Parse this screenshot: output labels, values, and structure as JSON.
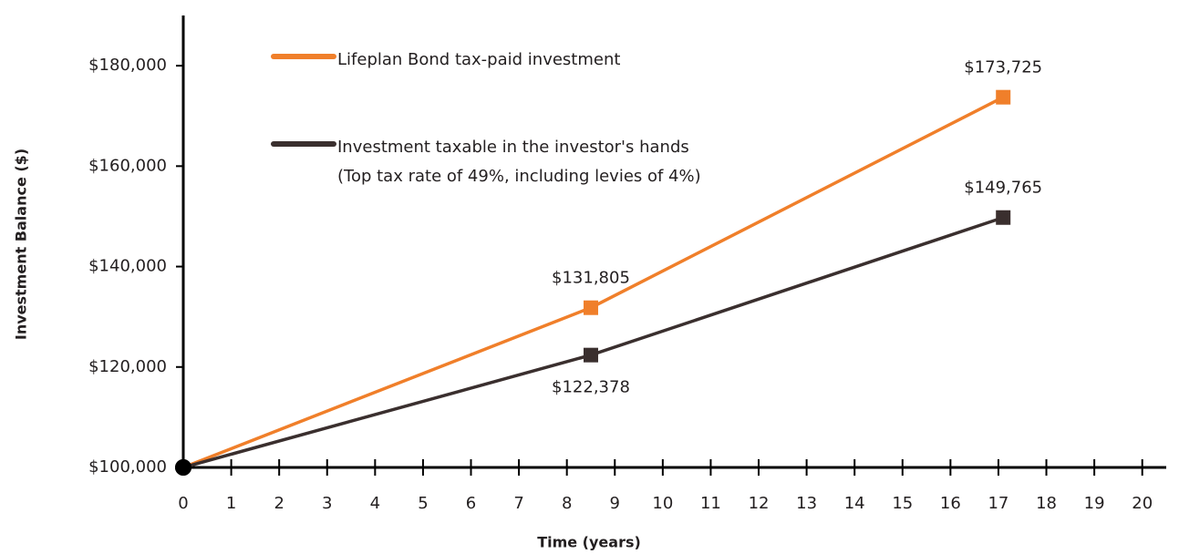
{
  "chart_data": {
    "type": "line",
    "x_label": "Time (years)",
    "y_label": "Investment Balance ($)",
    "xlim": [
      0,
      20.5
    ],
    "xticks": [
      0,
      1,
      2,
      3,
      4,
      5,
      6,
      7,
      8,
      9,
      10,
      11,
      12,
      13,
      14,
      15,
      16,
      17,
      18,
      19,
      20
    ],
    "ylim": [
      100000,
      190000
    ],
    "yticks": [
      {
        "value": 100000,
        "label": "$100,000"
      },
      {
        "value": 120000,
        "label": "$120,000"
      },
      {
        "value": 140000,
        "label": "$140,000"
      },
      {
        "value": 160000,
        "label": "$160,000"
      },
      {
        "value": 180000,
        "label": "$180,000"
      }
    ],
    "grid": false,
    "legend": "upper left",
    "series": [
      {
        "name": "Lifeplan Bond tax-paid investment",
        "color": "#f07f2a",
        "x": [
          0,
          8.5,
          17.1
        ],
        "values": [
          100000,
          131805,
          173725
        ],
        "value_labels": [
          null,
          "$131,805",
          "$173,725"
        ]
      },
      {
        "name": "Investment taxable in the investor's hands",
        "name_detail": "(Top tax rate of 49%, including levies of 4%)",
        "color": "#3a2f2e",
        "x": [
          0,
          8.5,
          17.1
        ],
        "values": [
          100000,
          122378,
          149765
        ],
        "value_labels": [
          null,
          "$122,378",
          "$149,765"
        ]
      }
    ]
  }
}
